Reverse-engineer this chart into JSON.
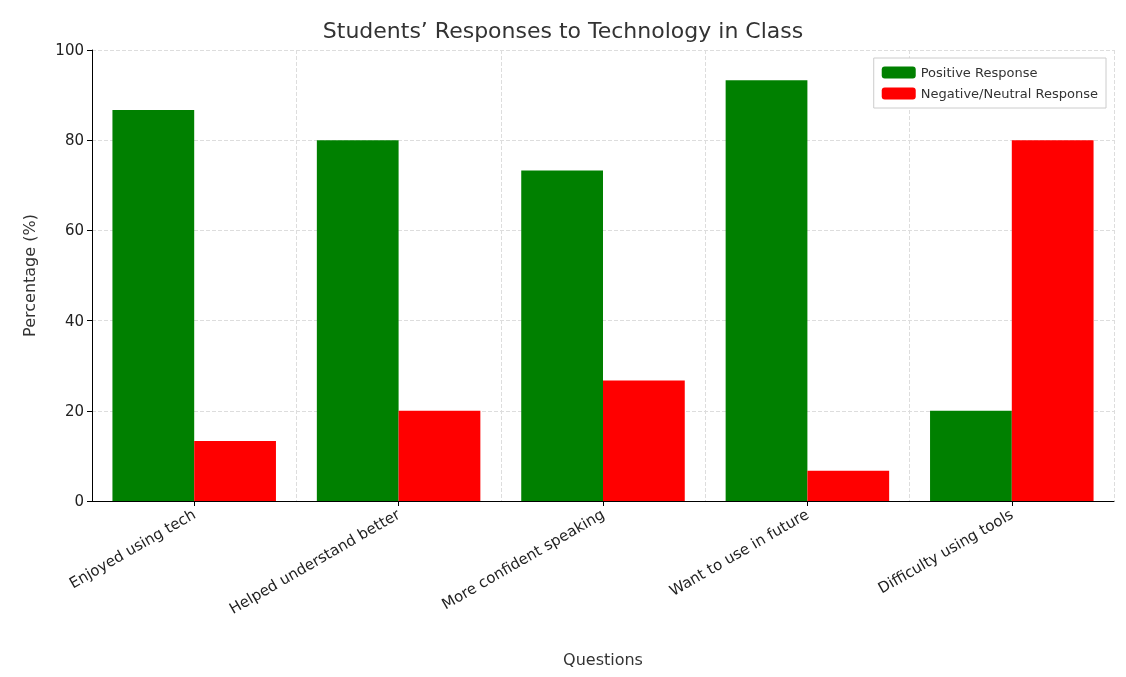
{
  "chart_data": {
    "type": "bar",
    "title": "Students’ Responses to Technology in Class",
    "xlabel": "Questions",
    "ylabel": "Percentage (%)",
    "categories": [
      "Enjoyed using tech",
      "Helped understand better",
      "More confident speaking",
      "Want to use in future",
      "Difficulty using tools"
    ],
    "series": [
      {
        "name": "Positive Response",
        "color": "#008000",
        "values": [
          86.7,
          80,
          73.3,
          93.3,
          20
        ]
      },
      {
        "name": "Negative/Neutral Response",
        "color": "#ff0000",
        "values": [
          13.3,
          20,
          26.7,
          6.7,
          80
        ]
      }
    ],
    "ylim": [
      0,
      100
    ],
    "yticks": [
      0,
      20,
      40,
      60,
      80,
      100
    ],
    "grid": true,
    "legend": "top right"
  }
}
